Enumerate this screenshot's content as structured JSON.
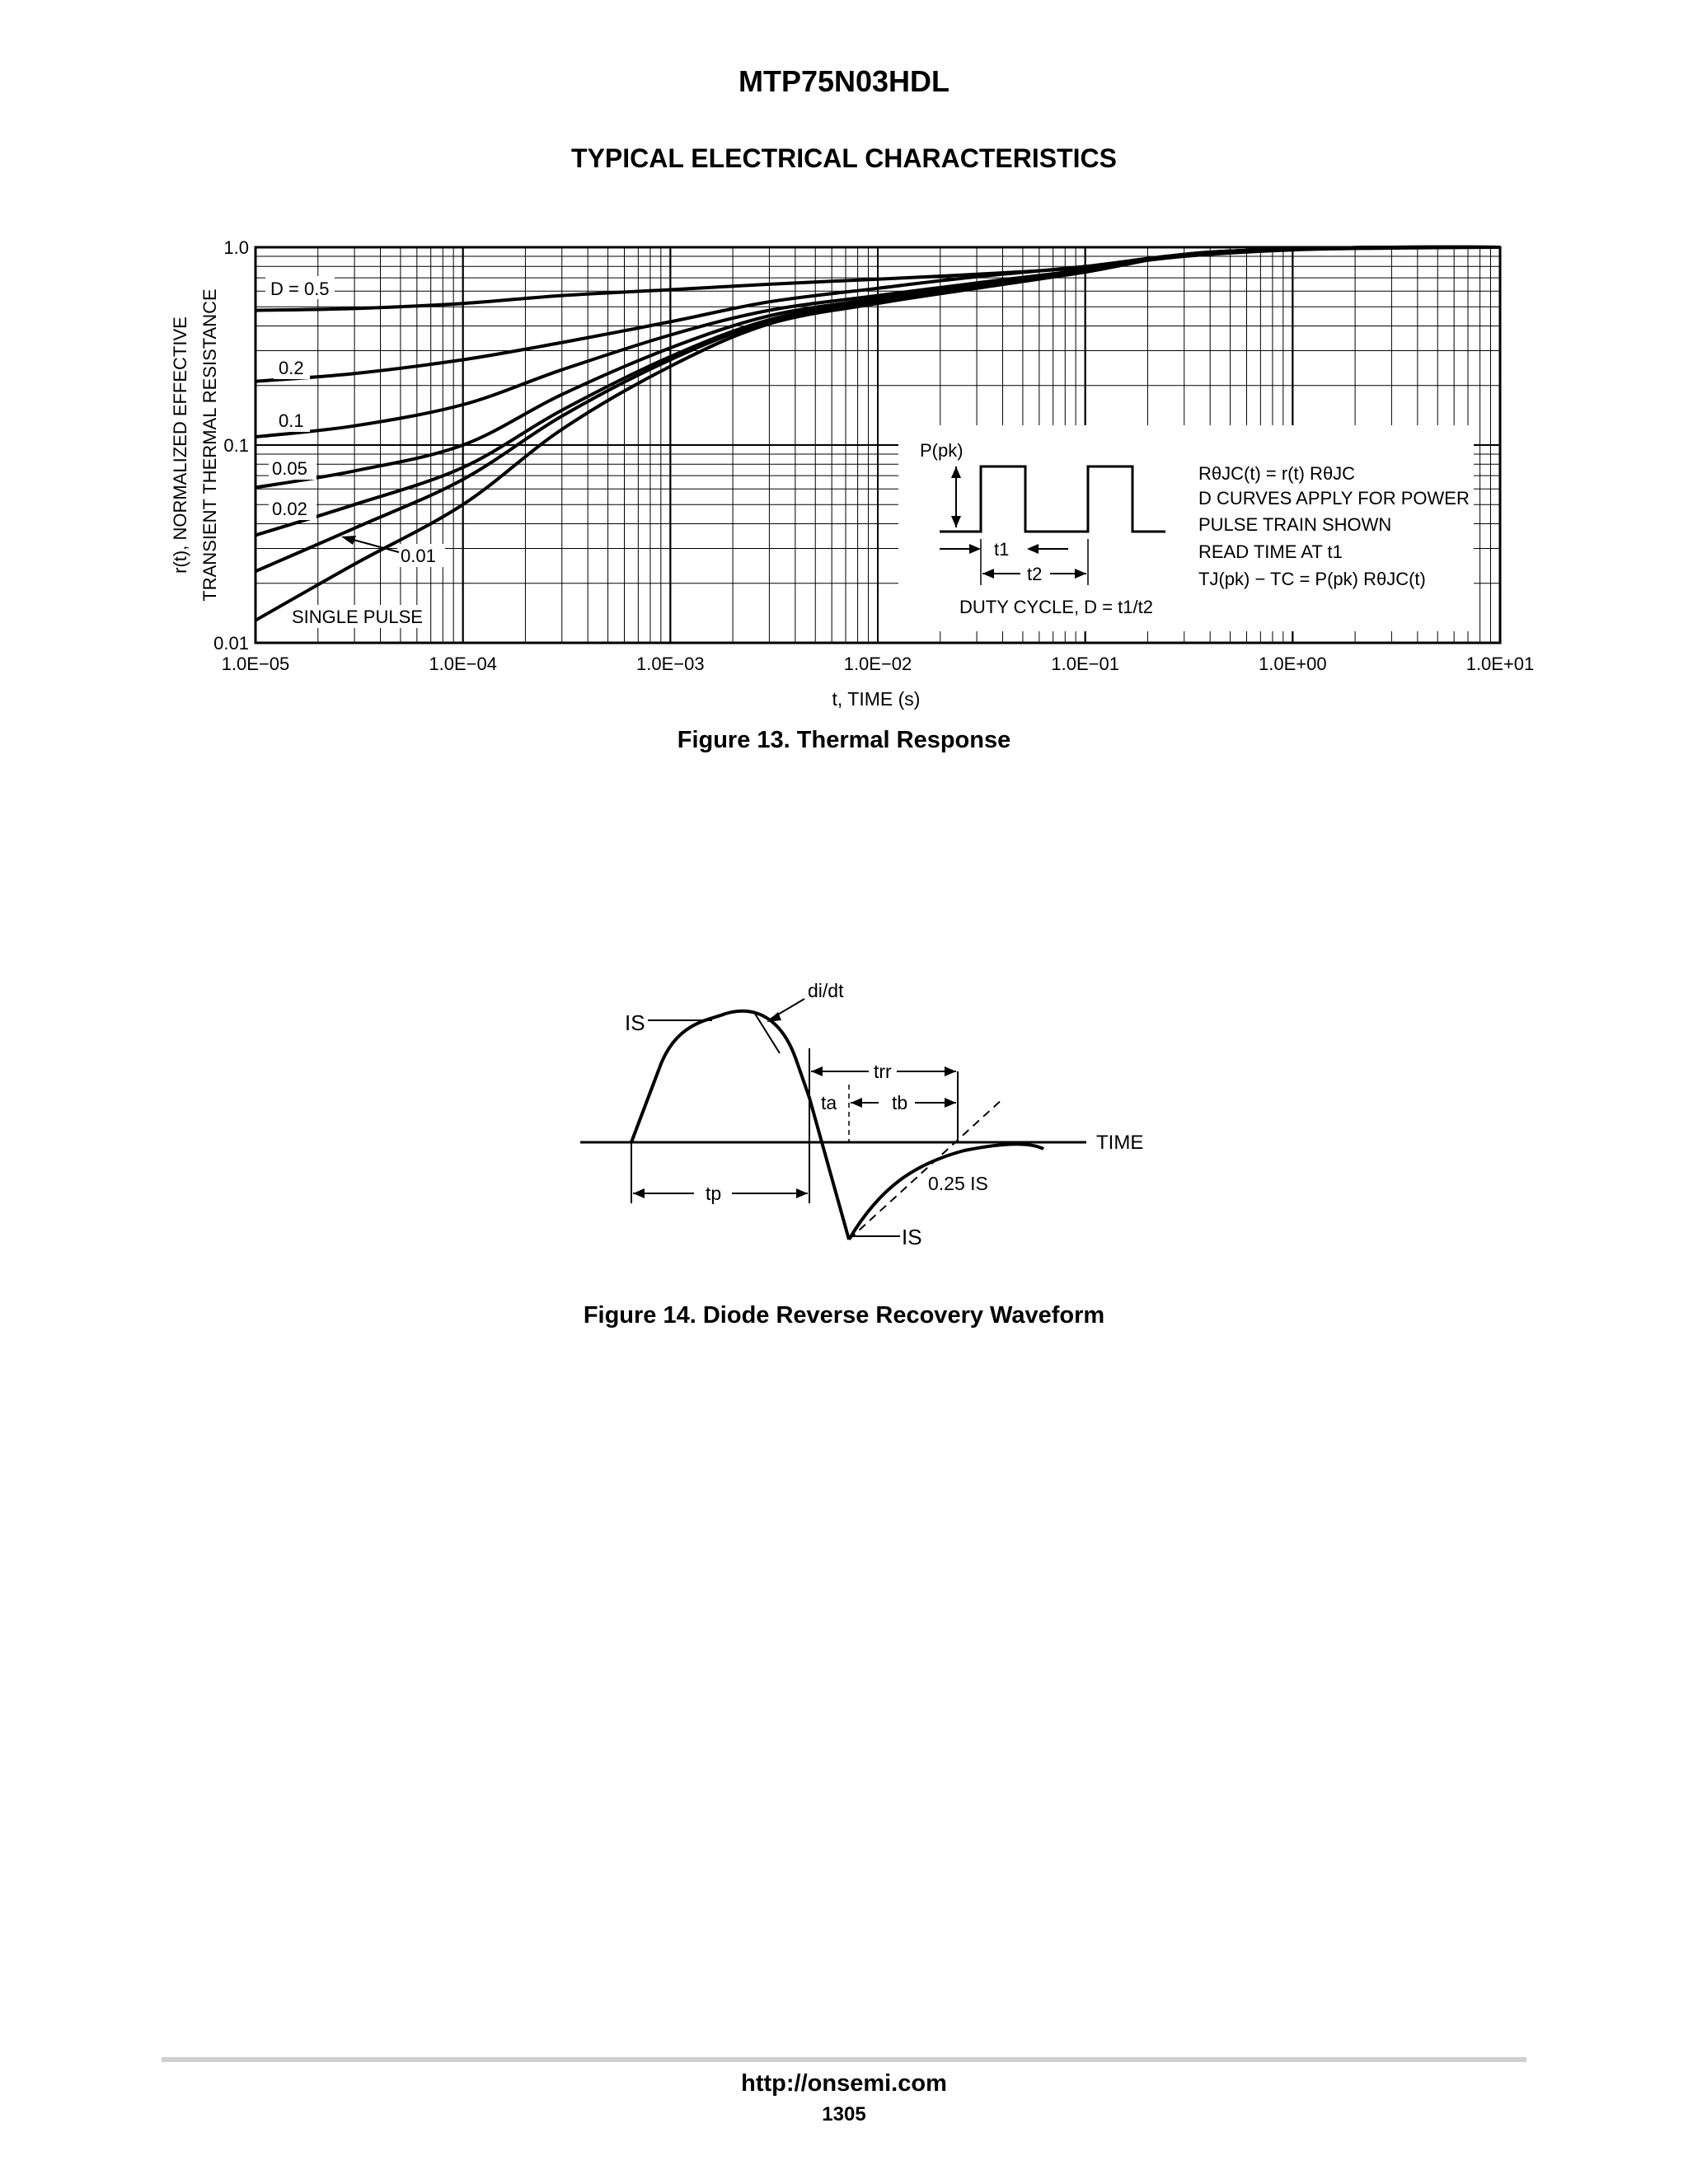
{
  "header": {
    "title": "MTP75N03HDL",
    "section": "TYPICAL ELECTRICAL CHARACTERISTICS"
  },
  "figure13": {
    "caption": "Figure 13. Thermal Response",
    "chart_data": {
      "type": "line",
      "x_scale": "log",
      "y_scale": "log",
      "xlabel": "t, TIME (s)",
      "ylabel_line1": "r(t), NORMALIZED EFFECTIVE",
      "ylabel_line2": "TRANSIENT THERMAL RESISTANCE",
      "xlim": [
        1e-05,
        10
      ],
      "ylim": [
        0.01,
        1.0
      ],
      "grid": true,
      "x_tick_labels": [
        "1.0E−05",
        "1.0E−04",
        "1.0E−03",
        "1.0E−02",
        "1.0E−01",
        "1.0E+00",
        "1.0E+01"
      ],
      "x_tick_values": [
        1e-05,
        0.0001,
        0.001,
        0.01,
        0.1,
        1,
        10
      ],
      "y_tick_labels": [
        "1.0",
        "0.1",
        "0.01"
      ],
      "y_tick_values": [
        1.0,
        0.1,
        0.01
      ],
      "series": [
        {
          "name": "D = 0.5",
          "x": [
            1e-05,
            3e-05,
            0.0001,
            0.0003,
            0.001,
            0.003,
            0.01,
            0.03,
            0.1,
            0.3,
            1,
            3,
            10
          ],
          "y": [
            0.48,
            0.49,
            0.52,
            0.57,
            0.61,
            0.65,
            0.69,
            0.73,
            0.79,
            0.9,
            0.97,
            0.99,
            1.0
          ]
        },
        {
          "name": "0.2",
          "x": [
            1e-05,
            3e-05,
            0.0001,
            0.0003,
            0.001,
            0.003,
            0.01,
            0.03,
            0.1,
            0.3,
            1,
            3,
            10
          ],
          "y": [
            0.21,
            0.23,
            0.27,
            0.33,
            0.42,
            0.53,
            0.62,
            0.71,
            0.8,
            0.92,
            0.98,
            1.0,
            1.0
          ]
        },
        {
          "name": "0.1",
          "x": [
            1e-05,
            3e-05,
            0.0001,
            0.0003,
            0.001,
            0.003,
            0.01,
            0.03,
            0.1,
            0.3,
            1,
            3,
            10
          ],
          "y": [
            0.11,
            0.125,
            0.16,
            0.24,
            0.36,
            0.48,
            0.57,
            0.66,
            0.77,
            0.92,
            0.98,
            1.0,
            1.0
          ]
        },
        {
          "name": "0.05",
          "x": [
            1e-05,
            3e-05,
            0.0001,
            0.0003,
            0.001,
            0.003,
            0.01,
            0.03,
            0.1,
            0.3,
            1,
            3,
            10
          ],
          "y": [
            0.061,
            0.074,
            0.1,
            0.18,
            0.31,
            0.45,
            0.55,
            0.64,
            0.76,
            0.92,
            0.98,
            1.0,
            1.0
          ]
        },
        {
          "name": "0.02",
          "x": [
            1e-05,
            3e-05,
            0.0001,
            0.0003,
            0.001,
            0.003,
            0.01,
            0.03,
            0.1,
            0.3,
            1,
            3,
            10
          ],
          "y": [
            0.035,
            0.05,
            0.077,
            0.15,
            0.28,
            0.43,
            0.54,
            0.63,
            0.75,
            0.92,
            0.98,
            1.0,
            1.0
          ]
        },
        {
          "name": "0.01",
          "x": [
            1e-05,
            3e-05,
            0.0001,
            0.0003,
            0.001,
            0.003,
            0.01,
            0.03,
            0.1,
            0.3,
            1,
            3,
            10
          ],
          "y": [
            0.023,
            0.038,
            0.067,
            0.14,
            0.27,
            0.42,
            0.53,
            0.63,
            0.75,
            0.92,
            0.98,
            1.0,
            1.0
          ]
        },
        {
          "name": "SINGLE PULSE",
          "x": [
            1e-05,
            3e-05,
            0.0001,
            0.0003,
            0.001,
            0.003,
            0.01,
            0.03,
            0.1,
            0.3,
            1,
            3,
            10
          ],
          "y": [
            0.013,
            0.025,
            0.05,
            0.12,
            0.25,
            0.41,
            0.52,
            0.62,
            0.75,
            0.92,
            0.98,
            1.0,
            1.0
          ]
        }
      ],
      "annotations": {
        "p_pk": "P(pk)",
        "t1": "t1",
        "t2": "t2",
        "duty_cycle": "DUTY CYCLE, D = t1/t2",
        "notes": [
          "RθJC(t) = r(t) RθJC",
          "D CURVES APPLY FOR POWER",
          "PULSE TRAIN SHOWN",
          "READ TIME AT t1",
          "TJ(pk) − TC = P(pk) RθJC(t)"
        ]
      }
    }
  },
  "figure14": {
    "caption": "Figure 14. Diode Reverse Recovery Waveform",
    "labels": {
      "di_dt": "di/dt",
      "is_top": "IS",
      "trr": "trr",
      "ta": "ta",
      "tb": "tb",
      "time": "TIME",
      "tp": "tp",
      "quarter_is": "0.25 IS",
      "is_bottom": "IS"
    }
  },
  "footer": {
    "url": "http://onsemi.com",
    "page": "1305"
  }
}
